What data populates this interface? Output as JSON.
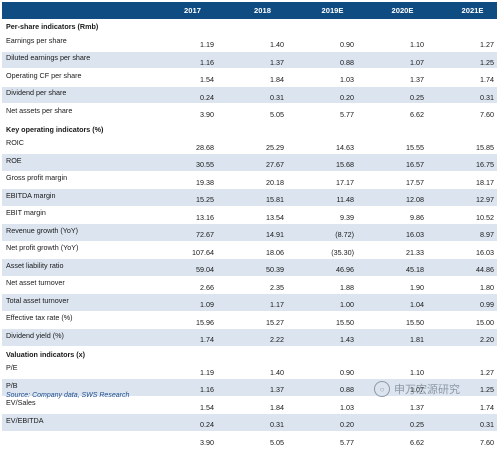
{
  "header": {
    "columns": [
      "2017",
      "2018",
      "2019E",
      "2020E",
      "2021E"
    ]
  },
  "sections": [
    {
      "title": "Per-share indicators (Rmb)",
      "rows": [
        {
          "label": "Earnings per share",
          "values": [
            "1.19",
            "1.40",
            "0.90",
            "1.10",
            "1.27"
          ]
        },
        {
          "label": "Diluted earnings per share",
          "values": [
            "1.16",
            "1.37",
            "0.88",
            "1.07",
            "1.25"
          ]
        },
        {
          "label": "Operating CF per share",
          "values": [
            "1.54",
            "1.84",
            "1.03",
            "1.37",
            "1.74"
          ]
        },
        {
          "label": "Dividend per share",
          "values": [
            "0.24",
            "0.31",
            "0.20",
            "0.25",
            "0.31"
          ]
        },
        {
          "label": "Net assets per share",
          "values": [
            "3.90",
            "5.05",
            "5.77",
            "6.62",
            "7.60"
          ]
        }
      ]
    },
    {
      "title": "Key operating indicators (%)",
      "rows": [
        {
          "label": "ROIC",
          "values": [
            "28.68",
            "25.29",
            "14.63",
            "15.55",
            "15.85"
          ]
        },
        {
          "label": "ROE",
          "values": [
            "30.55",
            "27.67",
            "15.68",
            "16.57",
            "16.75"
          ]
        },
        {
          "label": "Gross profit margin",
          "values": [
            "19.38",
            "20.18",
            "17.17",
            "17.57",
            "18.17"
          ]
        },
        {
          "label": "EBITDA margin",
          "values": [
            "15.25",
            "15.81",
            "11.48",
            "12.08",
            "12.97"
          ]
        },
        {
          "label": "EBIT  margin",
          "values": [
            "13.16",
            "13.54",
            "9.39",
            "9.86",
            "10.52"
          ]
        },
        {
          "label": "Revenue growth (YoY)",
          "values": [
            "72.67",
            "14.91",
            "(8.72)",
            "16.03",
            "8.97"
          ]
        },
        {
          "label": "Net profit growth (YoY)",
          "values": [
            "107.64",
            "18.06",
            "(35.30)",
            "21.33",
            "16.03"
          ]
        },
        {
          "label": "Asset liability ratio",
          "values": [
            "59.04",
            "50.39",
            "46.96",
            "45.18",
            "44.86"
          ]
        },
        {
          "label": "Net asset turnover",
          "values": [
            "2.66",
            "2.35",
            "1.88",
            "1.90",
            "1.80"
          ]
        },
        {
          "label": "Total asset turnover",
          "values": [
            "1.09",
            "1.17",
            "1.00",
            "1.04",
            "0.99"
          ]
        },
        {
          "label": "Effective tax rate (%)",
          "values": [
            "15.96",
            "15.27",
            "15.50",
            "15.50",
            "15.00"
          ]
        },
        {
          "label": "Dividend yield (%)",
          "values": [
            "1.74",
            "2.22",
            "1.43",
            "1.81",
            "2.20"
          ]
        }
      ]
    },
    {
      "title": "Valuation indicators (x)",
      "rows": [
        {
          "label": "P/E",
          "values": [
            "1.19",
            "1.40",
            "0.90",
            "1.10",
            "1.27"
          ]
        },
        {
          "label": "P/B",
          "values": [
            "1.16",
            "1.37",
            "0.88",
            "1.07",
            "1.25"
          ]
        },
        {
          "label": "EV/Sales",
          "values": [
            "1.54",
            "1.84",
            "1.03",
            "1.37",
            "1.74"
          ]
        },
        {
          "label": "EV/EBITDA",
          "values": [
            "0.24",
            "0.31",
            "0.20",
            "0.25",
            "0.31"
          ]
        },
        {
          "label": "",
          "values": [
            "3.90",
            "5.05",
            "5.77",
            "6.62",
            "7.60"
          ]
        }
      ]
    }
  ],
  "source": "Source: Company data, SWS Research",
  "watermark": {
    "text": "申万宏源研究",
    "icon": "wechat-logo-icon"
  },
  "colors": {
    "header_bg": "#0f4c81",
    "band_bg": "#dbe4ef",
    "source_text": "#1f4e8c"
  }
}
